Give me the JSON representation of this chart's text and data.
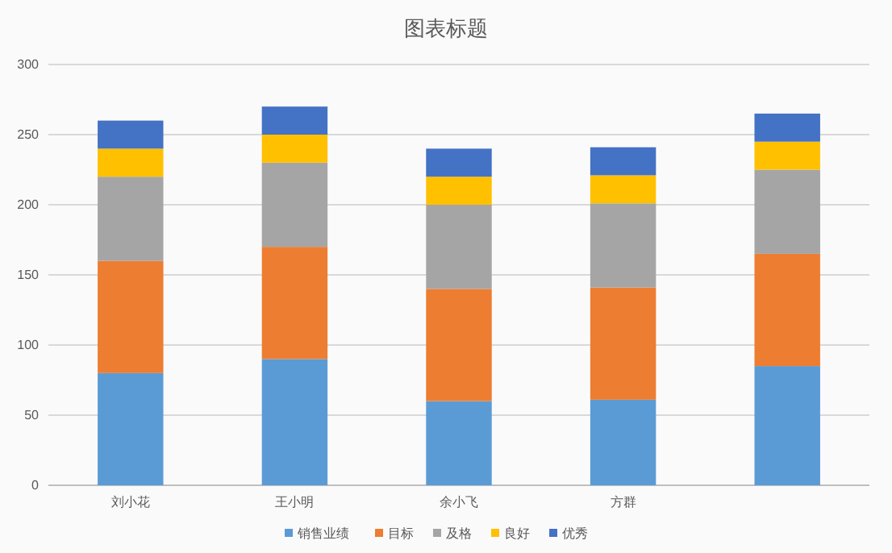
{
  "chart_data": {
    "type": "bar",
    "title": "图表标题",
    "categories": [
      "刘小花",
      "王小明",
      "余小飞",
      "方群",
      null
    ],
    "stacked": true,
    "ylim": [
      0,
      300
    ],
    "yticks": [
      0,
      50,
      100,
      150,
      200,
      250,
      300
    ],
    "grid": "y",
    "legend": "bottom",
    "series": [
      {
        "name": "销售业绩",
        "color": "#5b9bd5",
        "values": [
          80,
          90,
          60,
          61,
          85
        ]
      },
      {
        "name": "目标",
        "color": "#ed7d31",
        "values": [
          80,
          80,
          80,
          80,
          80
        ]
      },
      {
        "name": "及格",
        "color": "#a5a5a5",
        "values": [
          60,
          60,
          60,
          60,
          60
        ]
      },
      {
        "name": "良好",
        "color": "#ffc000",
        "values": [
          20,
          20,
          20,
          20,
          20
        ]
      },
      {
        "name": "优秀",
        "color": "#4472c4",
        "values": [
          20,
          20,
          20,
          20,
          20
        ]
      }
    ]
  }
}
